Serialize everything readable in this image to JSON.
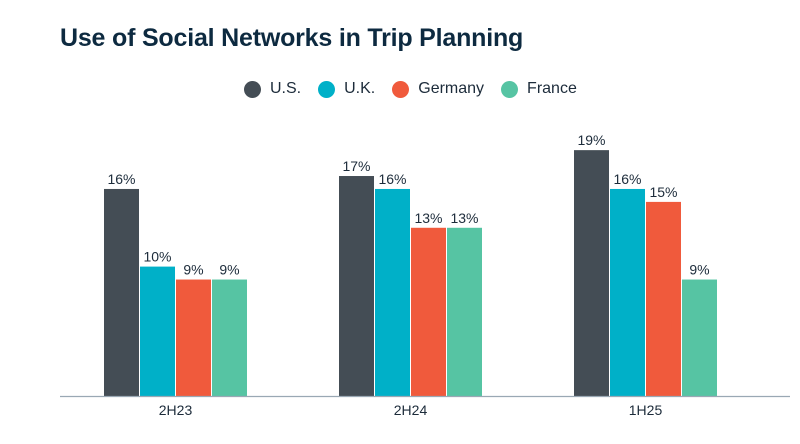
{
  "chart_data": {
    "type": "bar",
    "title": "Use of Social Networks in Trip Planning",
    "categories": [
      "2H23",
      "2H24",
      "1H25"
    ],
    "series": [
      {
        "name": "U.S.",
        "color": "#444d55",
        "values": [
          16,
          17,
          19
        ]
      },
      {
        "name": "U.K.",
        "color": "#00b0c8",
        "values": [
          10,
          16,
          16
        ]
      },
      {
        "name": "Germany",
        "color": "#f05a3c",
        "values": [
          9,
          13,
          15
        ]
      },
      {
        "name": "France",
        "color": "#56c4a3",
        "values": [
          9,
          13,
          9
        ]
      }
    ],
    "value_suffix": "%",
    "ylim": [
      0,
      20
    ],
    "grid": false,
    "legend_position": "top-center",
    "xlabel": "",
    "ylabel": ""
  }
}
